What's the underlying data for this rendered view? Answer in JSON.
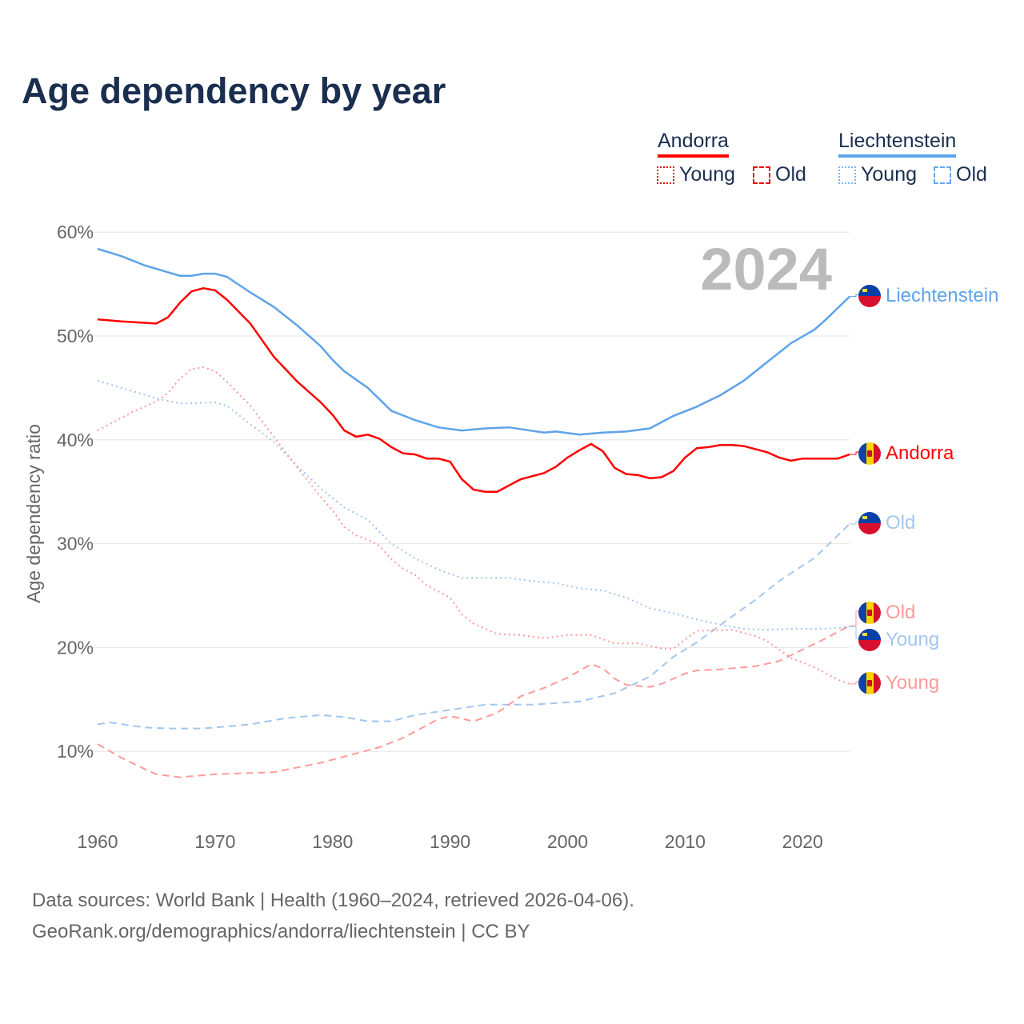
{
  "chart_data": {
    "type": "line",
    "title": "Age dependency by year",
    "ylabel": "Age dependency ratio",
    "xlabel": "",
    "year_watermark": "2024",
    "xlim": [
      1960,
      2024
    ],
    "ylim": [
      0,
      60
    ],
    "x_ticks": [
      "1960",
      "1970",
      "1980",
      "1990",
      "2000",
      "2010",
      "2020"
    ],
    "y_ticks": [
      "10%",
      "20%",
      "30%",
      "40%",
      "50%",
      "60%"
    ],
    "legend": {
      "groups": [
        {
          "name": "Andorra",
          "items": [
            "Young",
            "Old"
          ]
        },
        {
          "name": "Liechtenstein",
          "items": [
            "Young",
            "Old"
          ]
        }
      ],
      "placement": "top-right"
    },
    "colors": {
      "andorra": "#ff0000",
      "andorra_light": "#ff9a9a",
      "liechtenstein": "#5ea3ea",
      "liechtenstein_light": "#a3c6ef"
    },
    "series": [
      {
        "id": "li_total",
        "name": "Liechtenstein",
        "end_label": "Liechtenstein",
        "country": "li",
        "style": "solid",
        "color": "#5ea3ea",
        "points": [
          [
            1960,
            58.4
          ],
          [
            1962,
            57.7
          ],
          [
            1964,
            56.8
          ],
          [
            1967,
            55.8
          ],
          [
            1968,
            55.8
          ],
          [
            1969,
            56.0
          ],
          [
            1970,
            56.0
          ],
          [
            1971,
            55.7
          ],
          [
            1973,
            54.2
          ],
          [
            1975,
            52.8
          ],
          [
            1977,
            51.0
          ],
          [
            1979,
            49.0
          ],
          [
            1980,
            47.7
          ],
          [
            1981,
            46.6
          ],
          [
            1983,
            45.0
          ],
          [
            1985,
            42.8
          ],
          [
            1987,
            41.9
          ],
          [
            1989,
            41.2
          ],
          [
            1991,
            40.9
          ],
          [
            1993,
            41.1
          ],
          [
            1995,
            41.2
          ],
          [
            1998,
            40.7
          ],
          [
            1999,
            40.8
          ],
          [
            2001,
            40.5
          ],
          [
            2003,
            40.7
          ],
          [
            2005,
            40.8
          ],
          [
            2007,
            41.1
          ],
          [
            2009,
            42.3
          ],
          [
            2011,
            43.2
          ],
          [
            2013,
            44.3
          ],
          [
            2015,
            45.7
          ],
          [
            2017,
            47.5
          ],
          [
            2019,
            49.3
          ],
          [
            2021,
            50.6
          ],
          [
            2022,
            51.6
          ],
          [
            2024,
            53.8
          ]
        ]
      },
      {
        "id": "ad_total",
        "name": "Andorra",
        "end_label": "Andorra",
        "country": "ad",
        "style": "solid",
        "color": "#ff0000",
        "points": [
          [
            1960,
            51.6
          ],
          [
            1962,
            51.4
          ],
          [
            1965,
            51.2
          ],
          [
            1966,
            51.8
          ],
          [
            1967,
            53.2
          ],
          [
            1968,
            54.3
          ],
          [
            1969,
            54.6
          ],
          [
            1970,
            54.4
          ],
          [
            1971,
            53.5
          ],
          [
            1973,
            51.2
          ],
          [
            1975,
            48.0
          ],
          [
            1977,
            45.6
          ],
          [
            1979,
            43.6
          ],
          [
            1980,
            42.4
          ],
          [
            1981,
            40.9
          ],
          [
            1982,
            40.3
          ],
          [
            1983,
            40.5
          ],
          [
            1984,
            40.1
          ],
          [
            1985,
            39.3
          ],
          [
            1986,
            38.7
          ],
          [
            1987,
            38.6
          ],
          [
            1988,
            38.2
          ],
          [
            1989,
            38.2
          ],
          [
            1990,
            37.9
          ],
          [
            1991,
            36.2
          ],
          [
            1992,
            35.2
          ],
          [
            1993,
            35.0
          ],
          [
            1994,
            35.0
          ],
          [
            1996,
            36.2
          ],
          [
            1998,
            36.8
          ],
          [
            1999,
            37.4
          ],
          [
            2000,
            38.3
          ],
          [
            2001,
            39.0
          ],
          [
            2002,
            39.6
          ],
          [
            2003,
            38.9
          ],
          [
            2004,
            37.3
          ],
          [
            2005,
            36.7
          ],
          [
            2006,
            36.6
          ],
          [
            2007,
            36.3
          ],
          [
            2008,
            36.4
          ],
          [
            2009,
            37.0
          ],
          [
            2010,
            38.3
          ],
          [
            2011,
            39.2
          ],
          [
            2012,
            39.3
          ],
          [
            2013,
            39.5
          ],
          [
            2014,
            39.5
          ],
          [
            2015,
            39.4
          ],
          [
            2017,
            38.8
          ],
          [
            2018,
            38.3
          ],
          [
            2019,
            38.0
          ],
          [
            2020,
            38.2
          ],
          [
            2023,
            38.2
          ],
          [
            2024,
            38.6
          ]
        ]
      },
      {
        "id": "li_old",
        "name": "Liechtenstein Old",
        "end_label": "Old",
        "country": "li",
        "style": "dashed",
        "color": "#a3c6ef",
        "points": [
          [
            1960,
            12.6
          ],
          [
            1961,
            12.8
          ],
          [
            1964,
            12.3
          ],
          [
            1966,
            12.2
          ],
          [
            1969,
            12.2
          ],
          [
            1973,
            12.6
          ],
          [
            1976,
            13.2
          ],
          [
            1979,
            13.5
          ],
          [
            1981,
            13.3
          ],
          [
            1983,
            12.9
          ],
          [
            1985,
            12.9
          ],
          [
            1987,
            13.5
          ],
          [
            1990,
            14.0
          ],
          [
            1993,
            14.5
          ],
          [
            1997,
            14.5
          ],
          [
            2001,
            14.8
          ],
          [
            2004,
            15.6
          ],
          [
            2007,
            17.2
          ],
          [
            2009,
            19.1
          ],
          [
            2011,
            20.5
          ],
          [
            2014,
            23.0
          ],
          [
            2016,
            24.6
          ],
          [
            2018,
            26.4
          ],
          [
            2020,
            27.9
          ],
          [
            2021,
            28.6
          ],
          [
            2024,
            31.9
          ]
        ]
      },
      {
        "id": "ad_old",
        "name": "Andorra Old",
        "end_label": "Old",
        "country": "ad",
        "style": "dashed",
        "color": "#ff9a9a",
        "points": [
          [
            1960,
            10.7
          ],
          [
            1962,
            9.4
          ],
          [
            1964,
            8.3
          ],
          [
            1965,
            7.8
          ],
          [
            1967,
            7.5
          ],
          [
            1970,
            7.8
          ],
          [
            1975,
            8.0
          ],
          [
            1979,
            8.9
          ],
          [
            1982,
            9.8
          ],
          [
            1984,
            10.4
          ],
          [
            1986,
            11.3
          ],
          [
            1988,
            12.5
          ],
          [
            1989,
            13.1
          ],
          [
            1990,
            13.4
          ],
          [
            1992,
            12.9
          ],
          [
            1994,
            13.7
          ],
          [
            1996,
            15.3
          ],
          [
            1998,
            16.1
          ],
          [
            2000,
            17.1
          ],
          [
            2002,
            18.4
          ],
          [
            2003,
            18.0
          ],
          [
            2004,
            17.0
          ],
          [
            2005,
            16.4
          ],
          [
            2007,
            16.2
          ],
          [
            2008,
            16.5
          ],
          [
            2010,
            17.5
          ],
          [
            2011,
            17.8
          ],
          [
            2013,
            17.9
          ],
          [
            2016,
            18.2
          ],
          [
            2018,
            18.7
          ],
          [
            2020,
            19.8
          ],
          [
            2022,
            20.9
          ],
          [
            2024,
            22.1
          ]
        ]
      },
      {
        "id": "li_young",
        "name": "Liechtenstein Young",
        "end_label": "Young",
        "country": "li",
        "style": "dotted",
        "color": "#a3c6ef",
        "points": [
          [
            1960,
            45.7
          ],
          [
            1965,
            44.0
          ],
          [
            1967,
            43.5
          ],
          [
            1970,
            43.6
          ],
          [
            1971,
            43.3
          ],
          [
            1973,
            41.5
          ],
          [
            1975,
            39.8
          ],
          [
            1977,
            37.5
          ],
          [
            1979,
            35.3
          ],
          [
            1981,
            33.5
          ],
          [
            1983,
            32.3
          ],
          [
            1985,
            30.0
          ],
          [
            1987,
            28.6
          ],
          [
            1989,
            27.5
          ],
          [
            1991,
            26.7
          ],
          [
            1993,
            26.7
          ],
          [
            1995,
            26.7
          ],
          [
            1997,
            26.4
          ],
          [
            1999,
            26.2
          ],
          [
            2001,
            25.7
          ],
          [
            2003,
            25.5
          ],
          [
            2005,
            24.8
          ],
          [
            2007,
            23.8
          ],
          [
            2009,
            23.3
          ],
          [
            2011,
            22.7
          ],
          [
            2013,
            22.2
          ],
          [
            2015,
            21.8
          ],
          [
            2017,
            21.7
          ],
          [
            2019,
            21.8
          ],
          [
            2022,
            21.8
          ],
          [
            2024,
            22.0
          ]
        ]
      },
      {
        "id": "ad_young",
        "name": "Andorra Young",
        "end_label": "Young",
        "country": "ad",
        "style": "dotted",
        "color": "#ff9a9a",
        "points": [
          [
            1960,
            40.9
          ],
          [
            1963,
            42.7
          ],
          [
            1965,
            43.7
          ],
          [
            1966,
            44.5
          ],
          [
            1967,
            45.9
          ],
          [
            1968,
            46.8
          ],
          [
            1969,
            47.0
          ],
          [
            1970,
            46.6
          ],
          [
            1971,
            45.6
          ],
          [
            1973,
            43.3
          ],
          [
            1975,
            40.3
          ],
          [
            1977,
            37.3
          ],
          [
            1979,
            34.5
          ],
          [
            1980,
            33.2
          ],
          [
            1981,
            31.6
          ],
          [
            1982,
            30.8
          ],
          [
            1983,
            30.4
          ],
          [
            1984,
            29.8
          ],
          [
            1985,
            28.5
          ],
          [
            1986,
            27.6
          ],
          [
            1987,
            27.0
          ],
          [
            1988,
            26.0
          ],
          [
            1990,
            24.8
          ],
          [
            1991,
            23.2
          ],
          [
            1992,
            22.3
          ],
          [
            1994,
            21.3
          ],
          [
            1996,
            21.2
          ],
          [
            1998,
            20.9
          ],
          [
            2000,
            21.2
          ],
          [
            2002,
            21.2
          ],
          [
            2004,
            20.4
          ],
          [
            2006,
            20.4
          ],
          [
            2008,
            19.9
          ],
          [
            2009,
            19.9
          ],
          [
            2011,
            21.6
          ],
          [
            2014,
            21.7
          ],
          [
            2016,
            21.1
          ],
          [
            2017,
            20.6
          ],
          [
            2019,
            19.0
          ],
          [
            2021,
            18.1
          ],
          [
            2023,
            16.9
          ],
          [
            2024,
            16.5
          ]
        ]
      }
    ]
  },
  "legend": {
    "andorra": "Andorra",
    "andorra_young": "Young",
    "andorra_old": "Old",
    "liechtenstein": "Liechtenstein",
    "liechtenstein_young": "Young",
    "liechtenstein_old": "Old"
  },
  "footer": {
    "line1": "Data sources: World Bank | Health (1960–2024, retrieved 2026-04-06).",
    "line2": "GeoRank.org/demographics/andorra/liechtenstein | CC BY"
  }
}
